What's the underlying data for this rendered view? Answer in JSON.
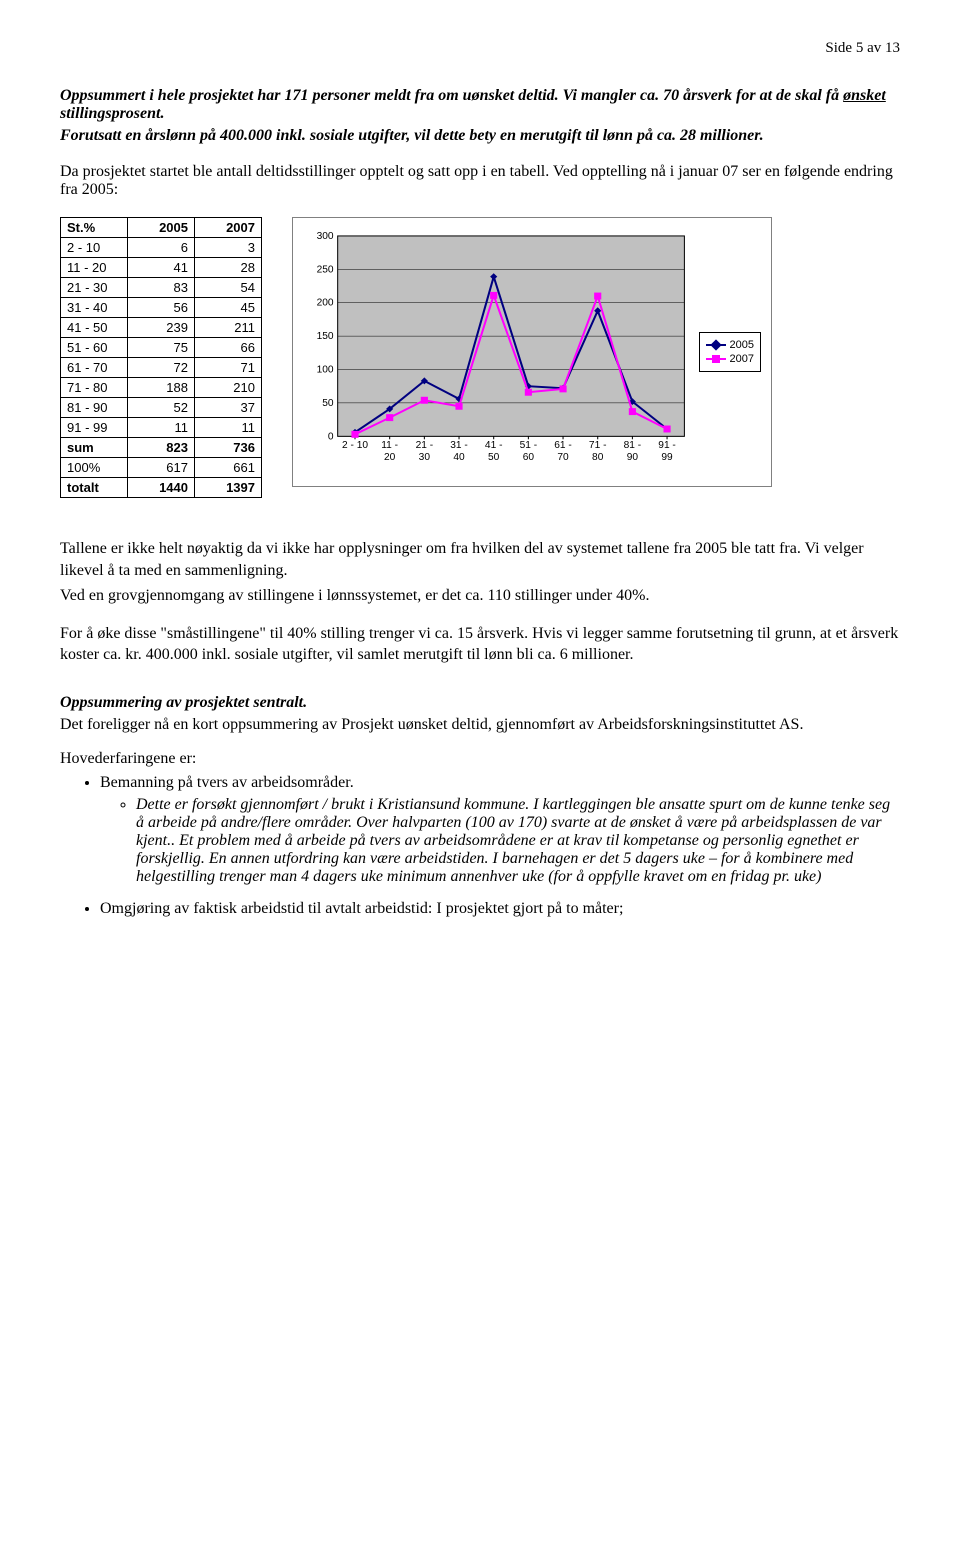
{
  "page_number": "Side 5 av 13",
  "intro": {
    "line1_a": "Oppsummert i hele prosjektet har 171 personer meldt fra om uønsket deltid. Vi mangler ca. 70 årsverk for at de skal få ",
    "line1_underlined": "ønsket",
    "line1_b": " stillingsprosent.",
    "line2": "Forutsatt en årslønn på 400.000 inkl. sosiale utgifter, vil dette bety en merutgift til lønn på ca. 28 millioner."
  },
  "para_before_table": "Da prosjektet startet ble antall deltidsstillinger opptelt og satt opp i en tabell. Ved opptelling nå i januar 07 ser en følgende endring fra 2005:",
  "table": {
    "headers": [
      "St.%",
      "2005",
      "2007"
    ],
    "rows": [
      {
        "label": "2 - 10",
        "a": "6",
        "b": "3"
      },
      {
        "label": "11 - 20",
        "a": "41",
        "b": "28"
      },
      {
        "label": "21 - 30",
        "a": "83",
        "b": "54"
      },
      {
        "label": "31 - 40",
        "a": "56",
        "b": "45"
      },
      {
        "label": "41 - 50",
        "a": "239",
        "b": "211"
      },
      {
        "label": "51 - 60",
        "a": "75",
        "b": "66"
      },
      {
        "label": "61 - 70",
        "a": "72",
        "b": "71"
      },
      {
        "label": "71 - 80",
        "a": "188",
        "b": "210"
      },
      {
        "label": "81 - 90",
        "a": "52",
        "b": "37"
      },
      {
        "label": "91 - 99",
        "a": "11",
        "b": "11"
      }
    ],
    "sum_row": {
      "label": "sum",
      "a": "823",
      "b": "736"
    },
    "p100_row": {
      "label": "100%",
      "a": "617",
      "b": "661"
    },
    "total_row": {
      "label": "totalt",
      "a": "1440",
      "b": "1397"
    }
  },
  "chart": {
    "type": "line",
    "categories": [
      "2 - 10",
      "11 - 20",
      "21 - 30",
      "31 - 40",
      "41 - 50",
      "51 - 60",
      "61 - 70",
      "71 - 80",
      "81 - 90",
      "91 - 99"
    ],
    "series": [
      {
        "name": "2005",
        "color": "#000080",
        "values": [
          6,
          41,
          83,
          56,
          239,
          75,
          72,
          188,
          52,
          11
        ],
        "marker": "diamond"
      },
      {
        "name": "2007",
        "color": "#ff00ff",
        "values": [
          3,
          28,
          54,
          45,
          211,
          66,
          71,
          210,
          37,
          11
        ],
        "marker": "square"
      }
    ],
    "y_ticks": [
      0,
      50,
      100,
      150,
      200,
      250,
      300
    ],
    "ylim": [
      0,
      300
    ],
    "plot_bg": "#c0c0c0",
    "grid_color": "#000000",
    "axis_font": "Arial",
    "axis_fontsize": 10,
    "line_width": 2,
    "marker_size": 7
  },
  "body": {
    "p1": "Tallene er ikke helt nøyaktig da vi ikke har opplysninger om fra hvilken del av systemet tallene fra 2005 ble tatt fra. Vi velger likevel å ta med en sammenligning.",
    "p2": "Ved en grovgjennomgang av stillingene i lønnssystemet, er det ca. 110 stillinger under 40%.",
    "p3": "For å øke disse \"småstillingene\" til 40% stilling trenger vi ca. 15 årsverk. Hvis vi legger samme forutsetning til grunn, at et årsverk koster ca. kr. 400.000 inkl. sosiale utgifter, vil samlet merutgift til lønn bli ca. 6 millioner."
  },
  "section2": {
    "title": "Oppsummering av prosjektet sentralt.",
    "intro": "Det foreligger nå en kort oppsummering av Prosjekt uønsket deltid, gjennomført av Arbeidsforskningsinstituttet AS.",
    "list_intro": "Hovederfaringene er:",
    "b1": "Bemanning på tvers av arbeidsområder.",
    "b1_sub": "Dette er forsøkt gjennomført / brukt i Kristiansund kommune. I kartleggingen ble ansatte spurt om de kunne tenke seg å arbeide på andre/flere områder. Over halvparten (100 av 170) svarte at de ønsket å være på arbeidsplassen de var kjent.. Et problem med å arbeide på tvers av arbeidsområdene er at krav til kompetanse og personlig egnethet er forskjellig. En annen utfordring kan være arbeidstiden. I barnehagen er det 5 dagers uke – for å kombinere med helgestilling trenger man 4 dagers uke minimum annenhver uke (for å oppfylle kravet om en fridag pr. uke)",
    "b2": "Omgjøring av faktisk arbeidstid til avtalt arbeidstid: I prosjektet gjort på to måter;"
  }
}
